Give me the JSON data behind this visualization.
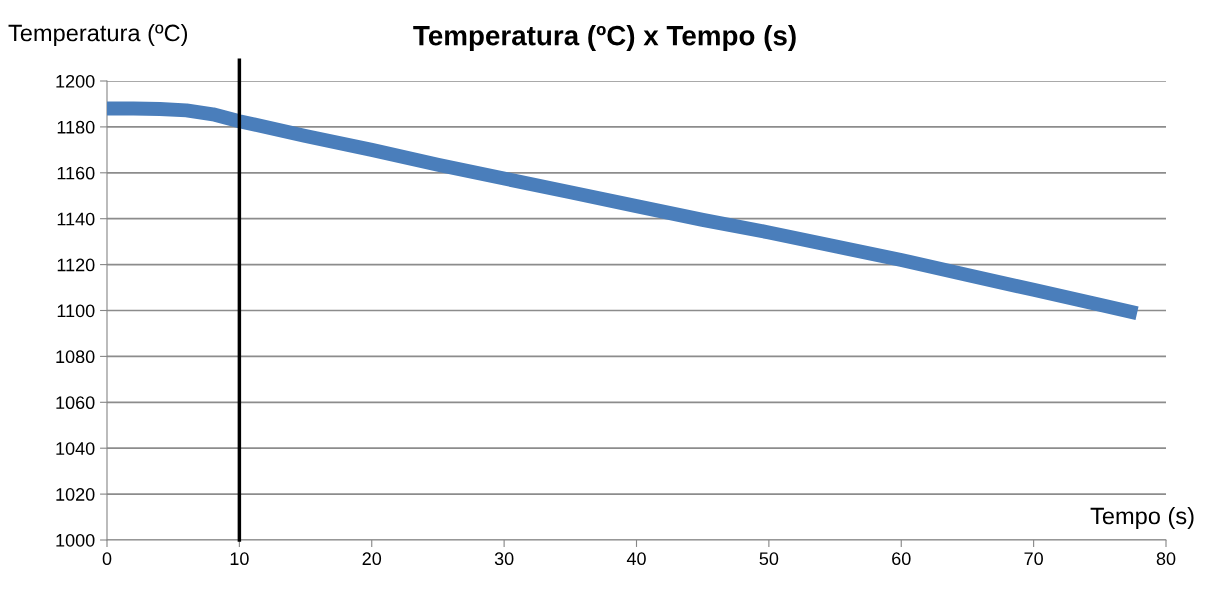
{
  "chart_data": {
    "type": "line",
    "title": "Temperatura (ºC) x Tempo (s)",
    "xlabel": "Tempo (s)",
    "ylabel": "Temperatura (ºC)",
    "series": [
      {
        "color": "#4a7ebb",
        "x": [
          0,
          2,
          4,
          6,
          8,
          10,
          15,
          20,
          25,
          30,
          35,
          40,
          45,
          50,
          55,
          60,
          65,
          70,
          75,
          77.3
        ],
        "values": [
          1188,
          1188,
          1187.8,
          1187.2,
          1185.5,
          1182.5,
          1176,
          1170,
          1163.5,
          1157.5,
          1151.5,
          1145.5,
          1139.5,
          1134,
          1128,
          1122,
          1115.5,
          1109,
          1102.5,
          1099.5
        ]
      }
    ],
    "xlim": [
      0,
      80
    ],
    "xticks": [
      0,
      10,
      20,
      30,
      40,
      50,
      60,
      70,
      80
    ],
    "ylim": [
      1000,
      1200
    ],
    "yticks": [
      1000,
      1020,
      1040,
      1060,
      1080,
      1100,
      1120,
      1140,
      1160,
      1180,
      1200
    ],
    "grid": "y",
    "legend": false,
    "line_style": "solid",
    "ref_lines": [
      {
        "axis": "x",
        "value": 10,
        "color": "#000000"
      }
    ]
  }
}
